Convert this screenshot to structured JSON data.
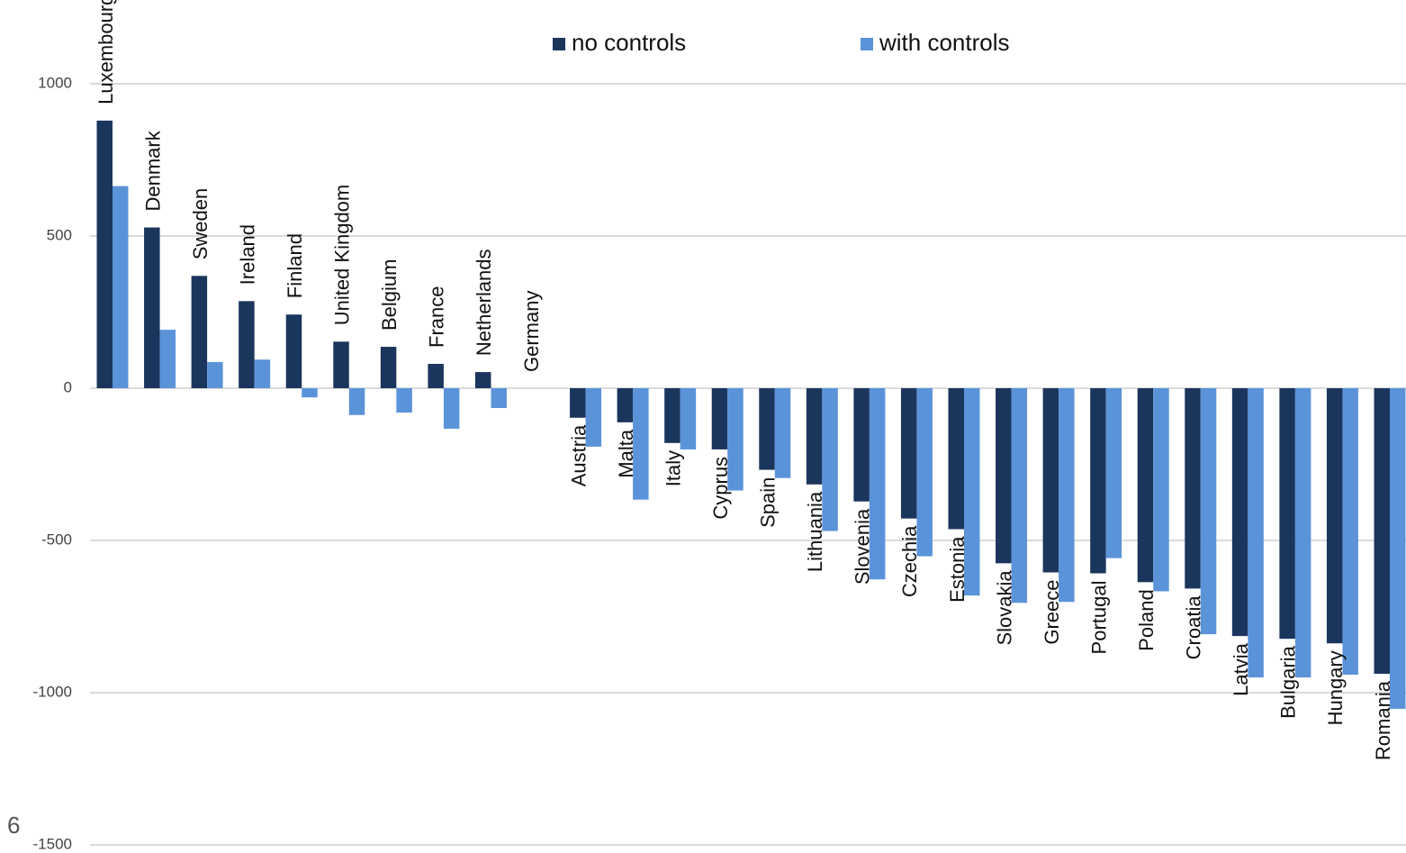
{
  "chart_data": {
    "type": "bar",
    "categories": [
      "Luxembourg",
      "Denmark",
      "Sweden",
      "Ireland",
      "Finland",
      "United Kingdom",
      "Belgium",
      "France",
      "Netherlands",
      "Germany",
      "Austria",
      "Malta",
      "Italy",
      "Cyprus",
      "Spain",
      "Lithuania",
      "Slovenia",
      "Czechia",
      "Estonia",
      "Slovakia",
      "Greece",
      "Portugal",
      "Poland",
      "Croatia",
      "Latvia",
      "Bulgaria",
      "Hungary",
      "Romania"
    ],
    "series": [
      {
        "name": "no controls",
        "color": "#1b365d",
        "values": [
          879,
          528,
          369,
          286,
          242,
          153,
          136,
          80,
          53,
          0,
          -97,
          -112,
          -180,
          -201,
          -268,
          -316,
          -372,
          -428,
          -463,
          -575,
          -605,
          -608,
          -637,
          -658,
          -814,
          -823,
          -838,
          -938
        ]
      },
      {
        "name": "with controls",
        "color": "#5b93d9",
        "values": [
          664,
          192,
          86,
          94,
          -30,
          -88,
          -80,
          -133,
          -65,
          0,
          -192,
          -366,
          -201,
          -336,
          -295,
          -469,
          -628,
          -552,
          -681,
          -705,
          -702,
          -558,
          -667,
          -808,
          -950,
          -950,
          -941,
          -1053
        ]
      }
    ],
    "ylim": [
      -1500,
      1100
    ],
    "yticks": [
      -1500,
      -1000,
      -500,
      0,
      500,
      1000
    ],
    "grid": true,
    "legend": "top"
  },
  "page_number": "6"
}
